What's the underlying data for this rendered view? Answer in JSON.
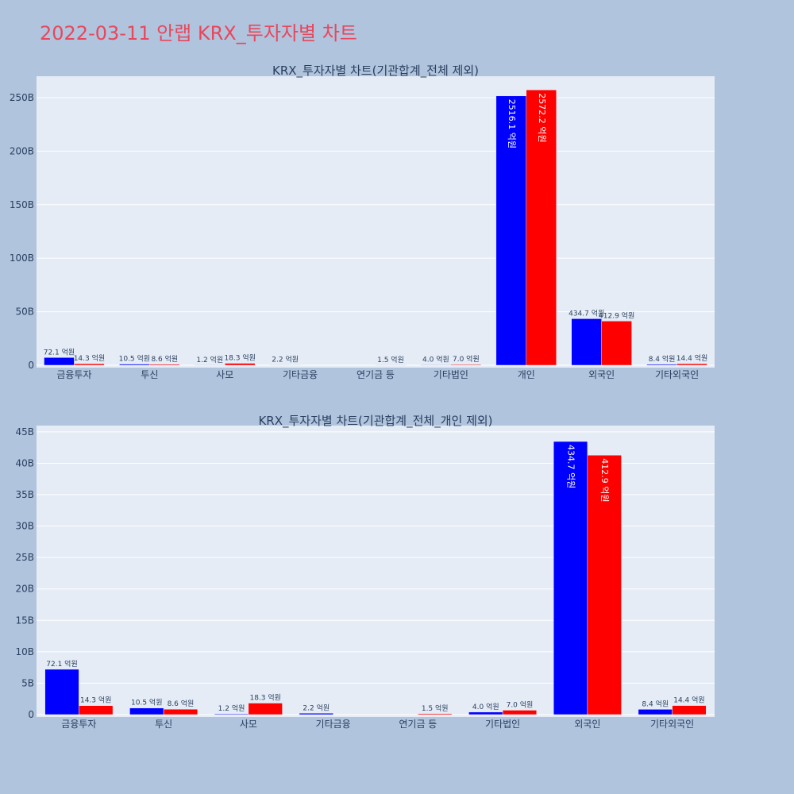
{
  "title": "2022-03-11 안랩 KRX_투자자별 차트",
  "colors": {
    "series1": "#0000ff",
    "series2": "#ff0000",
    "label_outside": "#2a3f5f",
    "label_inside": "#ffffff"
  },
  "chart_data": [
    {
      "type": "bar",
      "title": "KRX_투자자별 차트(기관합계_전체 제외)",
      "xlabel": "",
      "ylabel": "",
      "ylim": [
        0,
        270
      ],
      "yticks": [
        0,
        50,
        100,
        150,
        200,
        250
      ],
      "ytick_labels": [
        "0",
        "50B",
        "100B",
        "150B",
        "200B",
        "250B"
      ],
      "grid": true,
      "categories": [
        "금융투자",
        "투신",
        "사모",
        "기타금융",
        "연기금 등",
        "기타법인",
        "개인",
        "외국인",
        "기타외국인"
      ],
      "series": [
        {
          "values": [
            7.21,
            1.05,
            0.12,
            0.22,
            0,
            0.4,
            251.61,
            43.47,
            0.84
          ],
          "labels": [
            "72.1 억원",
            "10.5 억원",
            "1.2 억원",
            "2.2 억원",
            "",
            "4.0 억원",
            "2516.1 억원",
            "434.7 억원",
            "8.4 억원"
          ]
        },
        {
          "values": [
            1.43,
            0.86,
            1.83,
            0,
            0.15,
            0.7,
            257.22,
            41.29,
            1.44
          ],
          "labels": [
            "14.3 억원",
            "8.6 억원",
            "18.3 억원",
            "",
            "1.5 억원",
            "7.0 억원",
            "2572.2 억원",
            "412.9 억원",
            "14.4 억원"
          ]
        }
      ]
    },
    {
      "type": "bar",
      "title": "KRX_투자자별 차트(기관합계_전체_개인 제외)",
      "xlabel": "",
      "ylabel": "",
      "ylim": [
        0,
        46
      ],
      "yticks": [
        0,
        5,
        10,
        15,
        20,
        25,
        30,
        35,
        40,
        45
      ],
      "ytick_labels": [
        "0",
        "5B",
        "10B",
        "15B",
        "20B",
        "25B",
        "30B",
        "35B",
        "40B",
        "45B"
      ],
      "grid": true,
      "categories": [
        "금융투자",
        "투신",
        "사모",
        "기타금융",
        "연기금 등",
        "기타법인",
        "외국인",
        "기타외국인"
      ],
      "series": [
        {
          "values": [
            7.21,
            1.05,
            0.12,
            0.22,
            0,
            0.4,
            43.47,
            0.84
          ],
          "labels": [
            "72.1 억원",
            "10.5 억원",
            "1.2 억원",
            "2.2 억원",
            "",
            "4.0 억원",
            "434.7 억원",
            "8.4 억원"
          ]
        },
        {
          "values": [
            1.43,
            0.86,
            1.83,
            0,
            0.15,
            0.7,
            41.29,
            1.44
          ],
          "labels": [
            "14.3 억원",
            "8.6 억원",
            "18.3 억원",
            "",
            "1.5 억원",
            "7.0 억원",
            "412.9 억원",
            "14.4 억원"
          ]
        }
      ]
    }
  ]
}
